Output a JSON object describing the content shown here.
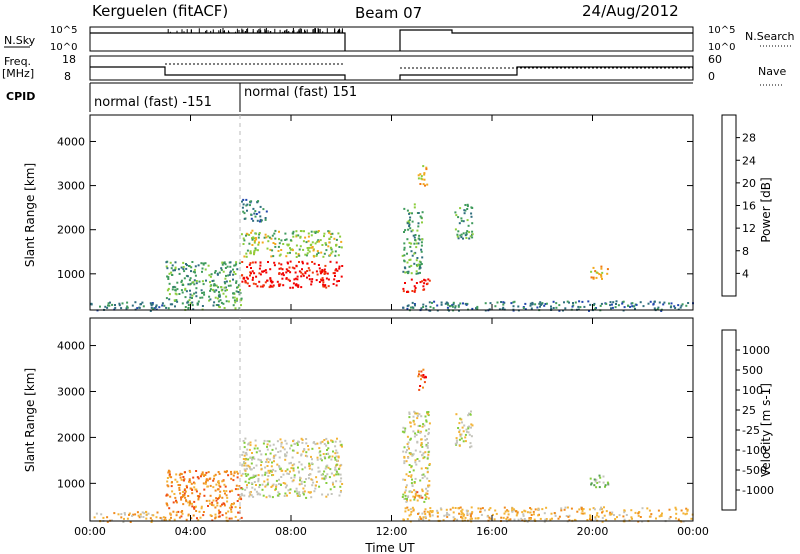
{
  "header": {
    "station": "Kerguelen (fitACF)",
    "beam": "Beam 07",
    "date": "24/Aug/2012"
  },
  "side_labels": {
    "nsky": "N.Sky",
    "freq": "Freq.",
    "mhz": "[MHz]",
    "cpid": "CPID",
    "nsearch": "N.Search",
    "nave": "Nave"
  },
  "strip_ticks": {
    "noise_left": [
      "10^5",
      "10^0"
    ],
    "noise_right": [
      "10^5",
      "10^0"
    ],
    "freq_left": [
      "18",
      "8"
    ],
    "freq_right": [
      "60",
      "0"
    ]
  },
  "cpid_labels": [
    "normal (fast) -151",
    "normal (fast) 151"
  ],
  "colors": {
    "power": [
      "#0b22e8",
      "#2146ac",
      "#2f6e7e",
      "#3f9b5c",
      "#8ccd3c",
      "#f2a81c",
      "#f07810",
      "#f03a0c",
      "#f20000"
    ],
    "velocity": [
      "#2b3ea8",
      "#3a6ea0",
      "#55a050",
      "#84cc3c",
      "#c4c4bc",
      "#f3b437",
      "#f08a1c",
      "#f04a12",
      "#f00000"
    ],
    "ground_scatter": "#c8c8c0"
  },
  "power_scale": {
    "ticks": [
      "28",
      "24",
      "20",
      "16",
      "12",
      "8",
      "4"
    ],
    "label": "Power [dB]"
  },
  "velocity_scale": {
    "ticks": [
      "1000",
      "500",
      "100",
      "25",
      "-25",
      "-100",
      "-500",
      "-1000"
    ],
    "label": "Velocity [m s-1]"
  },
  "chart_data": [
    {
      "type": "heatmap",
      "title": "Power",
      "ylabel": "Slant Range [km]",
      "ylim": [
        180,
        4600
      ],
      "xlim_hours": [
        0,
        24
      ],
      "yticks": [
        "1000",
        "2000",
        "3000",
        "4000"
      ],
      "xticks": [
        "00:00",
        "04:00",
        "08:00",
        "12:00",
        "16:00",
        "20:00",
        "00:00"
      ],
      "regions": [
        {
          "t": [
            0,
            3
          ],
          "r": [
            180,
            400
          ],
          "level": 2
        },
        {
          "t": [
            3,
            6
          ],
          "r": [
            200,
            1300
          ],
          "level": 3
        },
        {
          "t": [
            6,
            10
          ],
          "r": [
            700,
            1300
          ],
          "level": 8
        },
        {
          "t": [
            6,
            10
          ],
          "r": [
            1400,
            2000
          ],
          "level": 4
        },
        {
          "t": [
            6,
            7
          ],
          "r": [
            2200,
            2700
          ],
          "level": 2
        },
        {
          "t": [
            12.4,
            13.5
          ],
          "r": [
            600,
            900
          ],
          "level": 8
        },
        {
          "t": [
            12.4,
            13.2
          ],
          "r": [
            1000,
            2600
          ],
          "level": 3
        },
        {
          "t": [
            13.0,
            13.4
          ],
          "r": [
            3000,
            3500
          ],
          "level": 5
        },
        {
          "t": [
            14.5,
            15.2
          ],
          "r": [
            1800,
            2600
          ],
          "level": 3
        },
        {
          "t": [
            19.8,
            20.6
          ],
          "r": [
            900,
            1200
          ],
          "level": 5
        },
        {
          "t": [
            12.4,
            24
          ],
          "r": [
            180,
            400
          ],
          "level": 2
        }
      ]
    },
    {
      "type": "heatmap",
      "title": "Velocity",
      "ylabel": "Slant Range [km]",
      "ylim": [
        180,
        4600
      ],
      "xlim_hours": [
        0,
        24
      ],
      "yticks": [
        "1000",
        "2000",
        "3000",
        "4000"
      ],
      "xticks": [
        "00:00",
        "04:00",
        "08:00",
        "12:00",
        "16:00",
        "20:00",
        "00:00"
      ],
      "xlabel": "Time UT",
      "regions": [
        {
          "t": [
            0,
            3
          ],
          "r": [
            180,
            400
          ],
          "level": 5
        },
        {
          "t": [
            3,
            6
          ],
          "r": [
            200,
            1300
          ],
          "level": 6
        },
        {
          "t": [
            6,
            10
          ],
          "r": [
            700,
            2000
          ],
          "level": 4
        },
        {
          "t": [
            12.4,
            13.5
          ],
          "r": [
            600,
            2600
          ],
          "level": 4
        },
        {
          "t": [
            12.8,
            13.4
          ],
          "r": [
            700,
            900
          ],
          "level": 6
        },
        {
          "t": [
            13.0,
            13.4
          ],
          "r": [
            3000,
            3500
          ],
          "level": 7
        },
        {
          "t": [
            14.5,
            15.2
          ],
          "r": [
            1800,
            2600
          ],
          "level": 4
        },
        {
          "t": [
            19.8,
            20.6
          ],
          "r": [
            900,
            1200
          ],
          "level": 3
        },
        {
          "t": [
            12.4,
            24
          ],
          "r": [
            180,
            500
          ],
          "level": 5
        }
      ]
    }
  ]
}
